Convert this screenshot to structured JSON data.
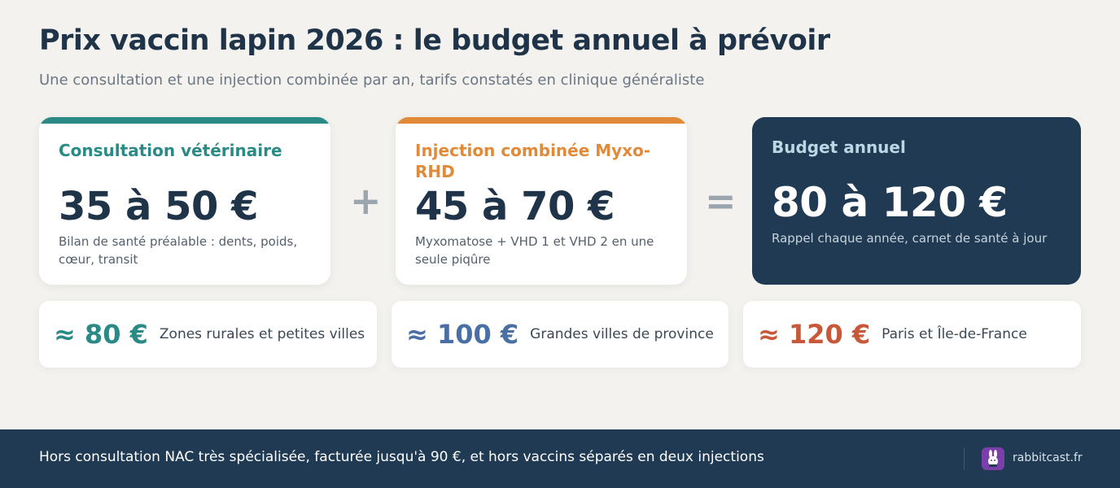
{
  "header": {
    "title": "Prix vaccin lapin 2026 : le budget annuel à prévoir",
    "subtitle": "Une consultation et une injection combinée par an, tarifs constatés en clinique généraliste"
  },
  "cards": [
    {
      "title": "Consultation vétérinaire",
      "value": "35 à 50 €",
      "note": "Bilan de santé préalable : dents, poids, cœur, transit",
      "accent": "#2a8a86"
    },
    {
      "title": "Injection combinée Myxo-RHD",
      "value": "45 à 70 €",
      "note": "Myxomatose + VHD 1 et VHD 2 en une seule piqûre",
      "accent": "#e08a3a"
    },
    {
      "title": "Budget annuel",
      "value": "80 à 120 €",
      "note": "Rappel chaque année, carnet de santé à jour",
      "accent": "#1f3a52"
    }
  ],
  "operators": {
    "plus": "+",
    "equals": "="
  },
  "regions": [
    {
      "amount": "≈ 80 €",
      "label": "Zones rurales et petites villes",
      "color": "#2a8a86"
    },
    {
      "amount": "≈ 100 €",
      "label": "Grandes villes de province",
      "color": "#4a6fa5"
    },
    {
      "amount": "≈ 120 €",
      "label": "Paris et Île-de-France",
      "color": "#c8583a"
    }
  ],
  "footer": {
    "text": "Hors consultation NAC très spécialisée, facturée jusqu'à 90 €, et hors vaccins séparés en deux injections",
    "brand": "rabbitcast.fr",
    "brand_icon": "rabbit-logo-icon"
  }
}
